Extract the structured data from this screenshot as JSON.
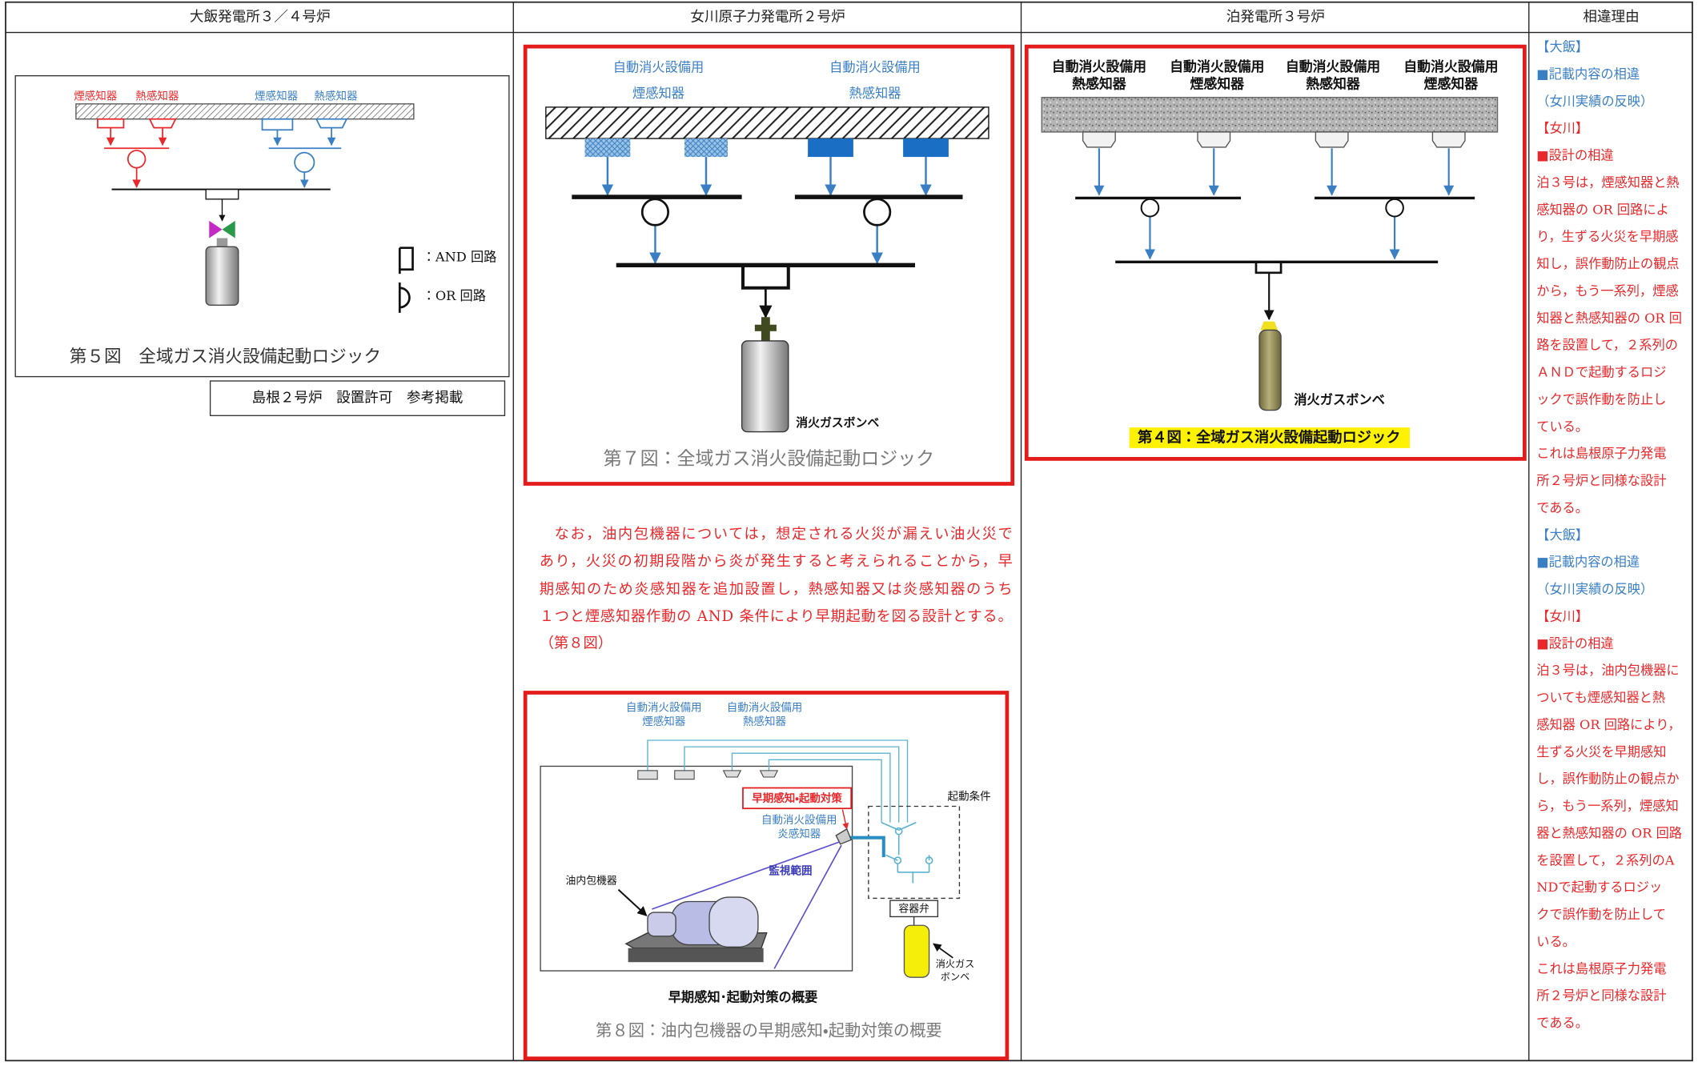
{
  "header": {
    "columns": [
      "大飯発電所３／４号炉",
      "女川原子力発電所２号炉",
      "泊発電所３号炉",
      "相違理由"
    ]
  },
  "ohi": {
    "figure": {
      "labels": [
        "煙感知器",
        "熱感知器",
        "煙感知器",
        "熱感知器"
      ],
      "and_legend": "：AND 回路",
      "or_legend": "：OR 回路",
      "caption": "第５図　全域ガス消火設備起動ロジック"
    },
    "note": "島根２号炉　設置許可　参考掲載"
  },
  "onagawa": {
    "figure7": {
      "smoke_label": [
        "自動消火設備用",
        "煙感知器"
      ],
      "heat_label": [
        "自動消火設備用",
        "熱感知器"
      ],
      "bottle_label": "消火ガスボンベ",
      "caption": "第７図：全域ガス消火設備起動ロジック"
    },
    "paragraph": [
      "なお，油内包機器については，想定される火災が漏えい油火災で",
      "あり，火災の初期段階から炎が発生すると考えられることから，早",
      "期感知のため炎感知器を追加設置し，熱感知器又は炎感知器のうち",
      "１つと煙感知器作動の AND 条件により早期起動を図る設計とする。",
      "（第８図）"
    ],
    "figure8": {
      "smoke_label": [
        "自動消火設備用",
        "煙感知器"
      ],
      "heat_label": [
        "自動消火設備用",
        "熱感知器"
      ],
      "measure_label": "早期感知・起動対策",
      "start_condition": "起動条件",
      "flame_label": [
        "自動消火設備用",
        "炎感知器"
      ],
      "monitor_range": "監視範囲",
      "equipment_label": "油内包機器",
      "valve_label": "容器弁",
      "bottle_label": [
        "消火ガス",
        "ボンベ"
      ],
      "title": "早期感知･起動対策の概要",
      "caption": "第８図：油内包機器の早期感知・起動対策の概要"
    }
  },
  "tomari": {
    "figure": {
      "detectors": [
        [
          "自動消火設備用",
          "熱感知器"
        ],
        [
          "自動消火設備用",
          "煙感知器"
        ],
        [
          "自動消火設備用",
          "熱感知器"
        ],
        [
          "自動消火設備用",
          "煙感知器"
        ]
      ],
      "bottle_label": "消火ガスボンベ",
      "caption": "第４図：全域ガス消火設備起動ロジック"
    }
  },
  "reasons": {
    "lines": [
      {
        "text": "【大飯】",
        "color": "#3a7fc4"
      },
      {
        "text": "■記載内容の相違",
        "color": "#3a7fc4"
      },
      {
        "text": "（女川実績の反映）",
        "color": "#3a7fc4"
      },
      {
        "text": "【女川】",
        "color": "#e8282b"
      },
      {
        "text": "■設計の相違",
        "color": "#e8282b"
      },
      {
        "text": "泊３号は，煙感知器と熱",
        "color": "#e8282b"
      },
      {
        "text": "感知器の OR 回路によ",
        "color": "#e8282b"
      },
      {
        "text": "り，生ずる火災を早期感",
        "color": "#e8282b"
      },
      {
        "text": "知し，誤作動防止の観点",
        "color": "#e8282b"
      },
      {
        "text": "から，もう一系列，煙感",
        "color": "#e8282b"
      },
      {
        "text": "知器と熱感知器の OR 回",
        "color": "#e8282b"
      },
      {
        "text": "路を設置して，２系列の",
        "color": "#e8282b"
      },
      {
        "text": "ＡＮＤで起動するロジ",
        "color": "#e8282b"
      },
      {
        "text": "ックで誤作動を防止し",
        "color": "#e8282b"
      },
      {
        "text": "ている。",
        "color": "#e8282b"
      },
      {
        "text": "これは島根原子力発電",
        "color": "#e8282b"
      },
      {
        "text": "所２号炉と同様な設計",
        "color": "#e8282b"
      },
      {
        "text": "である。",
        "color": "#e8282b"
      },
      {
        "text": "【大飯】",
        "color": "#3a7fc4"
      },
      {
        "text": "■記載内容の相違",
        "color": "#3a7fc4"
      },
      {
        "text": "（女川実績の反映）",
        "color": "#3a7fc4"
      },
      {
        "text": "【女川】",
        "color": "#e8282b"
      },
      {
        "text": "■設計の相違",
        "color": "#e8282b"
      },
      {
        "text": "泊３号は，油内包機器に",
        "color": "#e8282b"
      },
      {
        "text": "ついても煙感知器と熱",
        "color": "#e8282b"
      },
      {
        "text": "感知器 OR 回路により，",
        "color": "#e8282b"
      },
      {
        "text": "生ずる火災を早期感知",
        "color": "#e8282b"
      },
      {
        "text": "し，誤作動防止の観点か",
        "color": "#e8282b"
      },
      {
        "text": "ら，もう一系列，煙感知",
        "color": "#e8282b"
      },
      {
        "text": "器と熱感知器の OR 回路",
        "color": "#e8282b"
      },
      {
        "text": "を設置して，２系列のA",
        "color": "#e8282b"
      },
      {
        "text": "NDで起動するロジッ",
        "color": "#e8282b"
      },
      {
        "text": "クで誤作動を防止して",
        "color": "#e8282b"
      },
      {
        "text": "いる。",
        "color": "#e8282b"
      },
      {
        "text": "これは島根原子力発電",
        "color": "#e8282b"
      },
      {
        "text": "所２号炉と同様な設計",
        "color": "#e8282b"
      },
      {
        "text": "である。",
        "color": "#e8282b"
      }
    ]
  }
}
